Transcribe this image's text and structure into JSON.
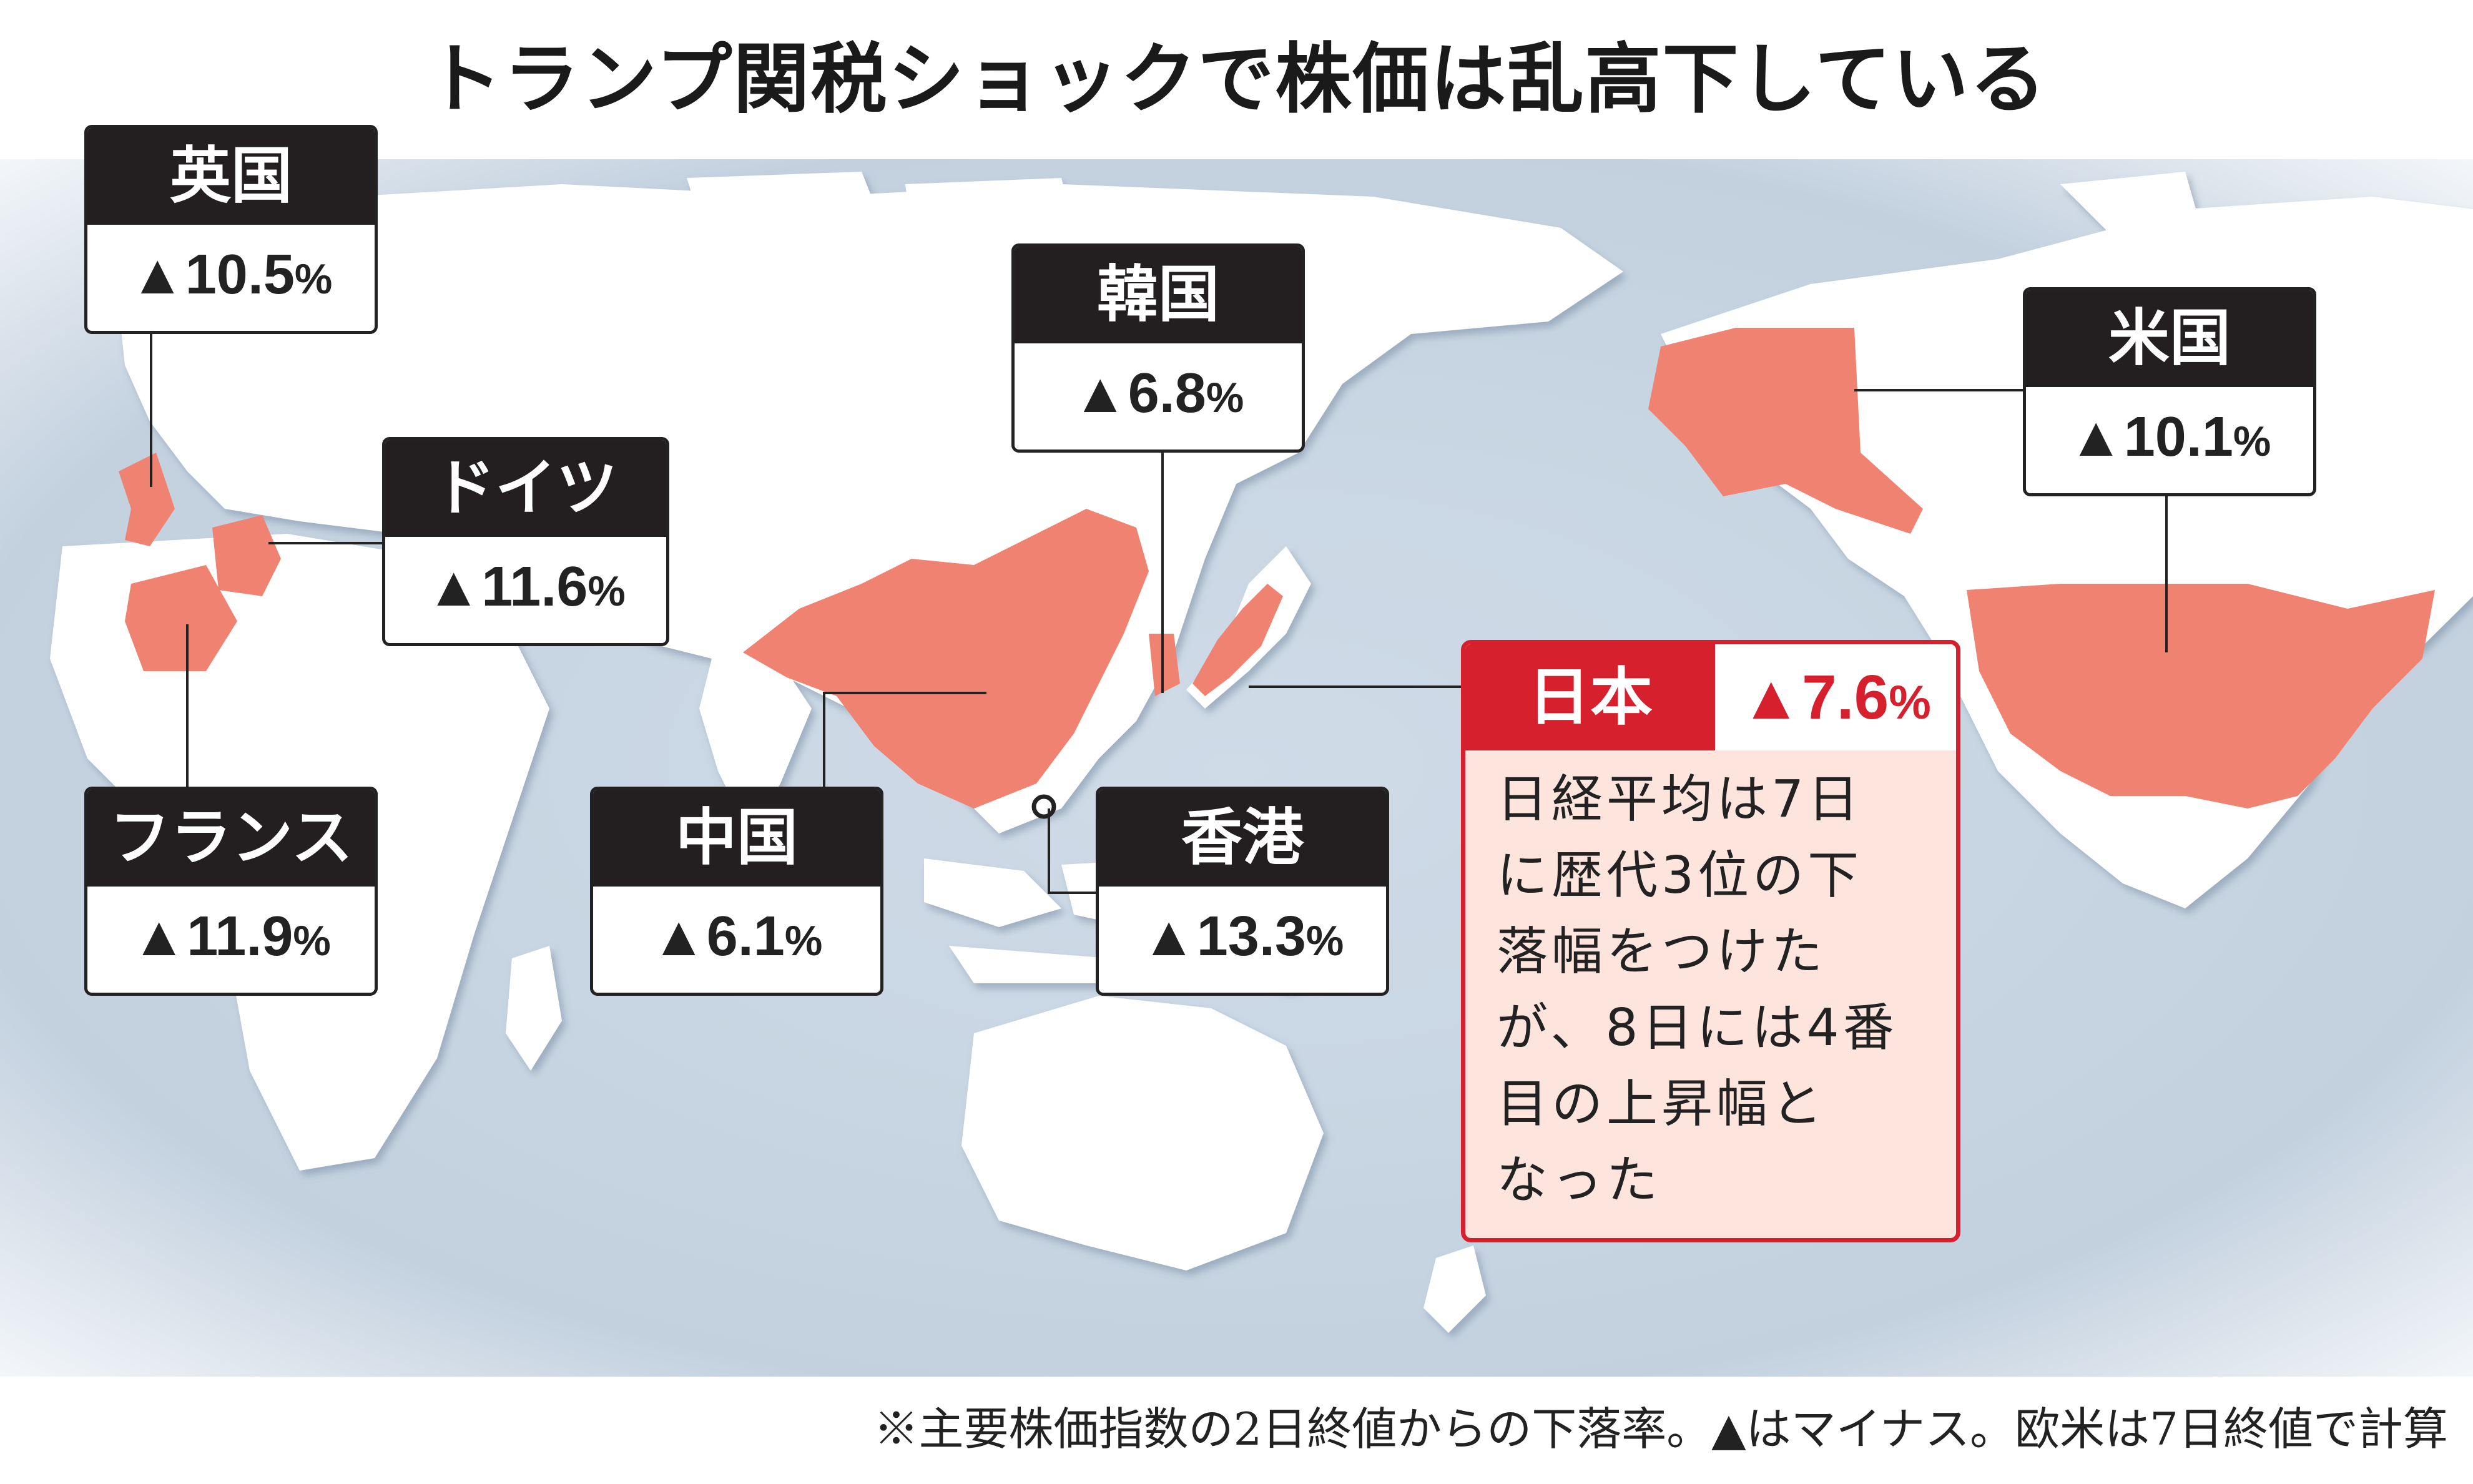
{
  "title": "トランプ関税ショックで株価は乱高下している",
  "countries": [
    {
      "id": "uk",
      "name": "英国",
      "value": "▲10.5",
      "unit": "%"
    },
    {
      "id": "germany",
      "name": "ドイツ",
      "value": "▲11.6",
      "unit": "%"
    },
    {
      "id": "france",
      "name": "フランス",
      "value": "▲11.9",
      "unit": "%"
    },
    {
      "id": "korea",
      "name": "韓国",
      "value": "▲6.8",
      "unit": "%"
    },
    {
      "id": "china",
      "name": "中国",
      "value": "▲6.1",
      "unit": "%"
    },
    {
      "id": "hongkong",
      "name": "香港",
      "value": "▲13.3",
      "unit": "%"
    },
    {
      "id": "usa",
      "name": "米国",
      "value": "▲10.1",
      "unit": "%"
    }
  ],
  "japan": {
    "name": "日本",
    "value": "▲7.6",
    "unit": "%",
    "note_lines": [
      "日経平均は7日",
      "に歴代3位の下",
      "落幅をつけた",
      "が、8日には4番",
      "目の上昇幅と",
      "なった"
    ]
  },
  "footnote": "※主要株価指数の2日終値からの下落率。▲はマイナス。欧米は7日終値で計算",
  "colors": {
    "ocean": "#c9d6e3",
    "land": "#ffffff",
    "highlight": "#ef8270",
    "box_header": "#231f20",
    "japan_accent": "#d6202d",
    "japan_note_bg": "#fde4dc"
  }
}
